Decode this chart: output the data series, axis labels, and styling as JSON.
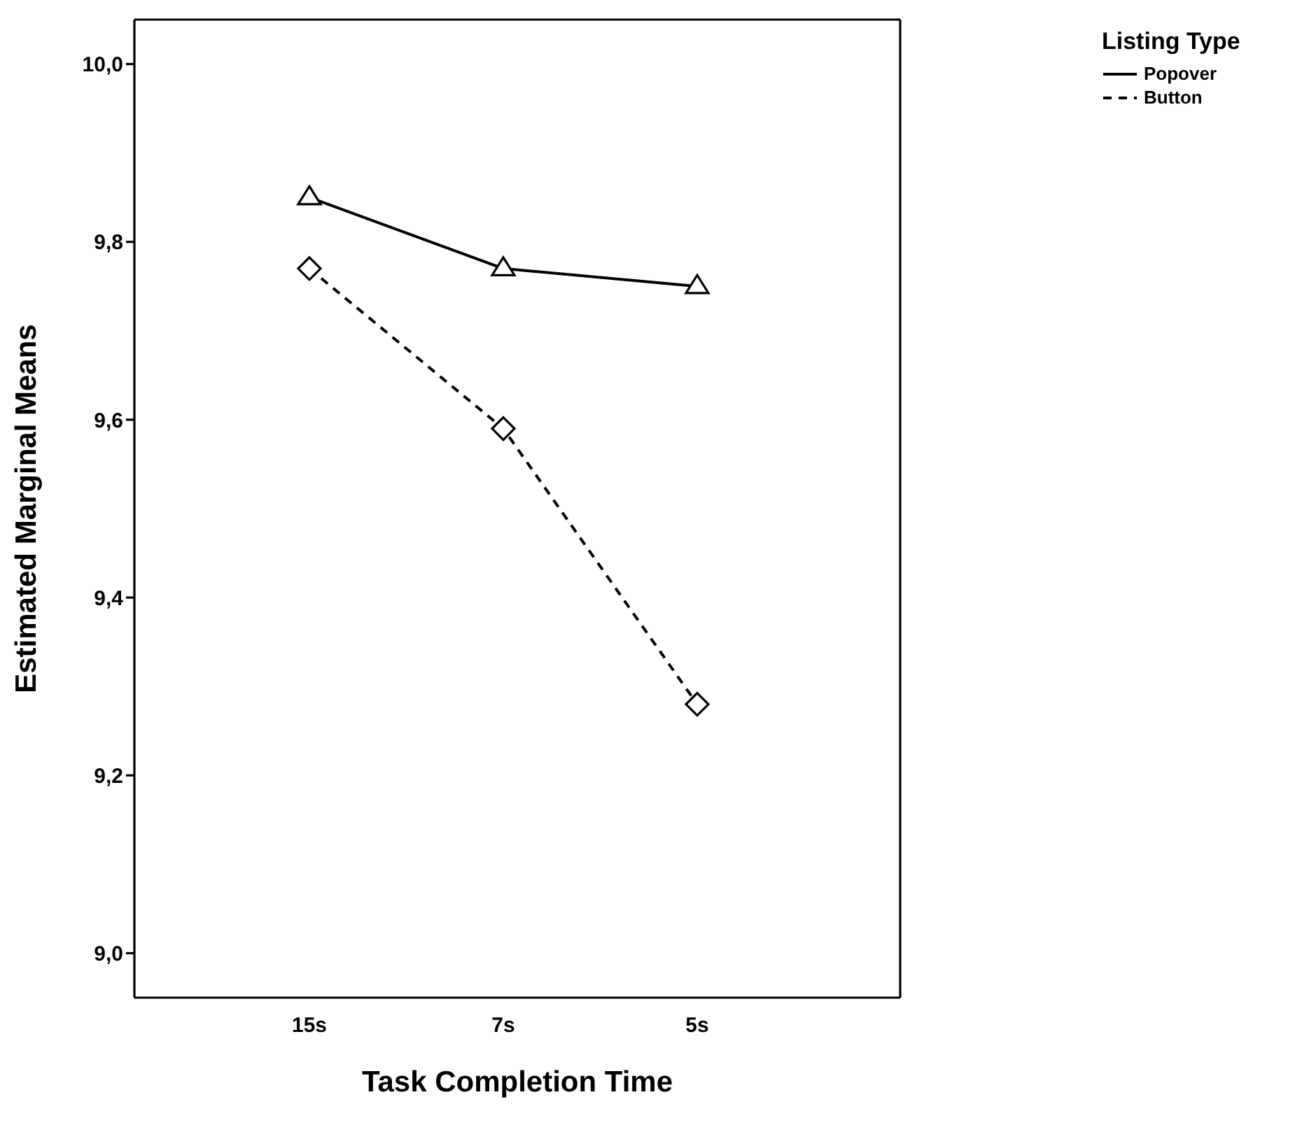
{
  "chart_data": {
    "type": "line",
    "xlabel": "Task Completion Time",
    "ylabel": "Estimated Marginal Means",
    "legend_title": "Listing Type",
    "legend": "top right",
    "categories": [
      "15s",
      "7s",
      "5s"
    ],
    "ylim": [
      8.95,
      10.05
    ],
    "yticks": [
      {
        "value": 9.0,
        "label": "9,0"
      },
      {
        "value": 9.2,
        "label": "9,2"
      },
      {
        "value": 9.4,
        "label": "9,4"
      },
      {
        "value": 9.6,
        "label": "9,6"
      },
      {
        "value": 9.8,
        "label": "9,8"
      },
      {
        "value": 10.0,
        "label": "10,0"
      }
    ],
    "grid": false,
    "series": [
      {
        "name": "Popover",
        "color": "#000000",
        "values": [
          9.85,
          9.77,
          9.75
        ],
        "marker": "triangle",
        "line_style": "solid"
      },
      {
        "name": "Button",
        "color": "#000000",
        "values": [
          9.77,
          9.59,
          9.28
        ],
        "marker": "diamond",
        "line_style": "dashed"
      }
    ]
  }
}
